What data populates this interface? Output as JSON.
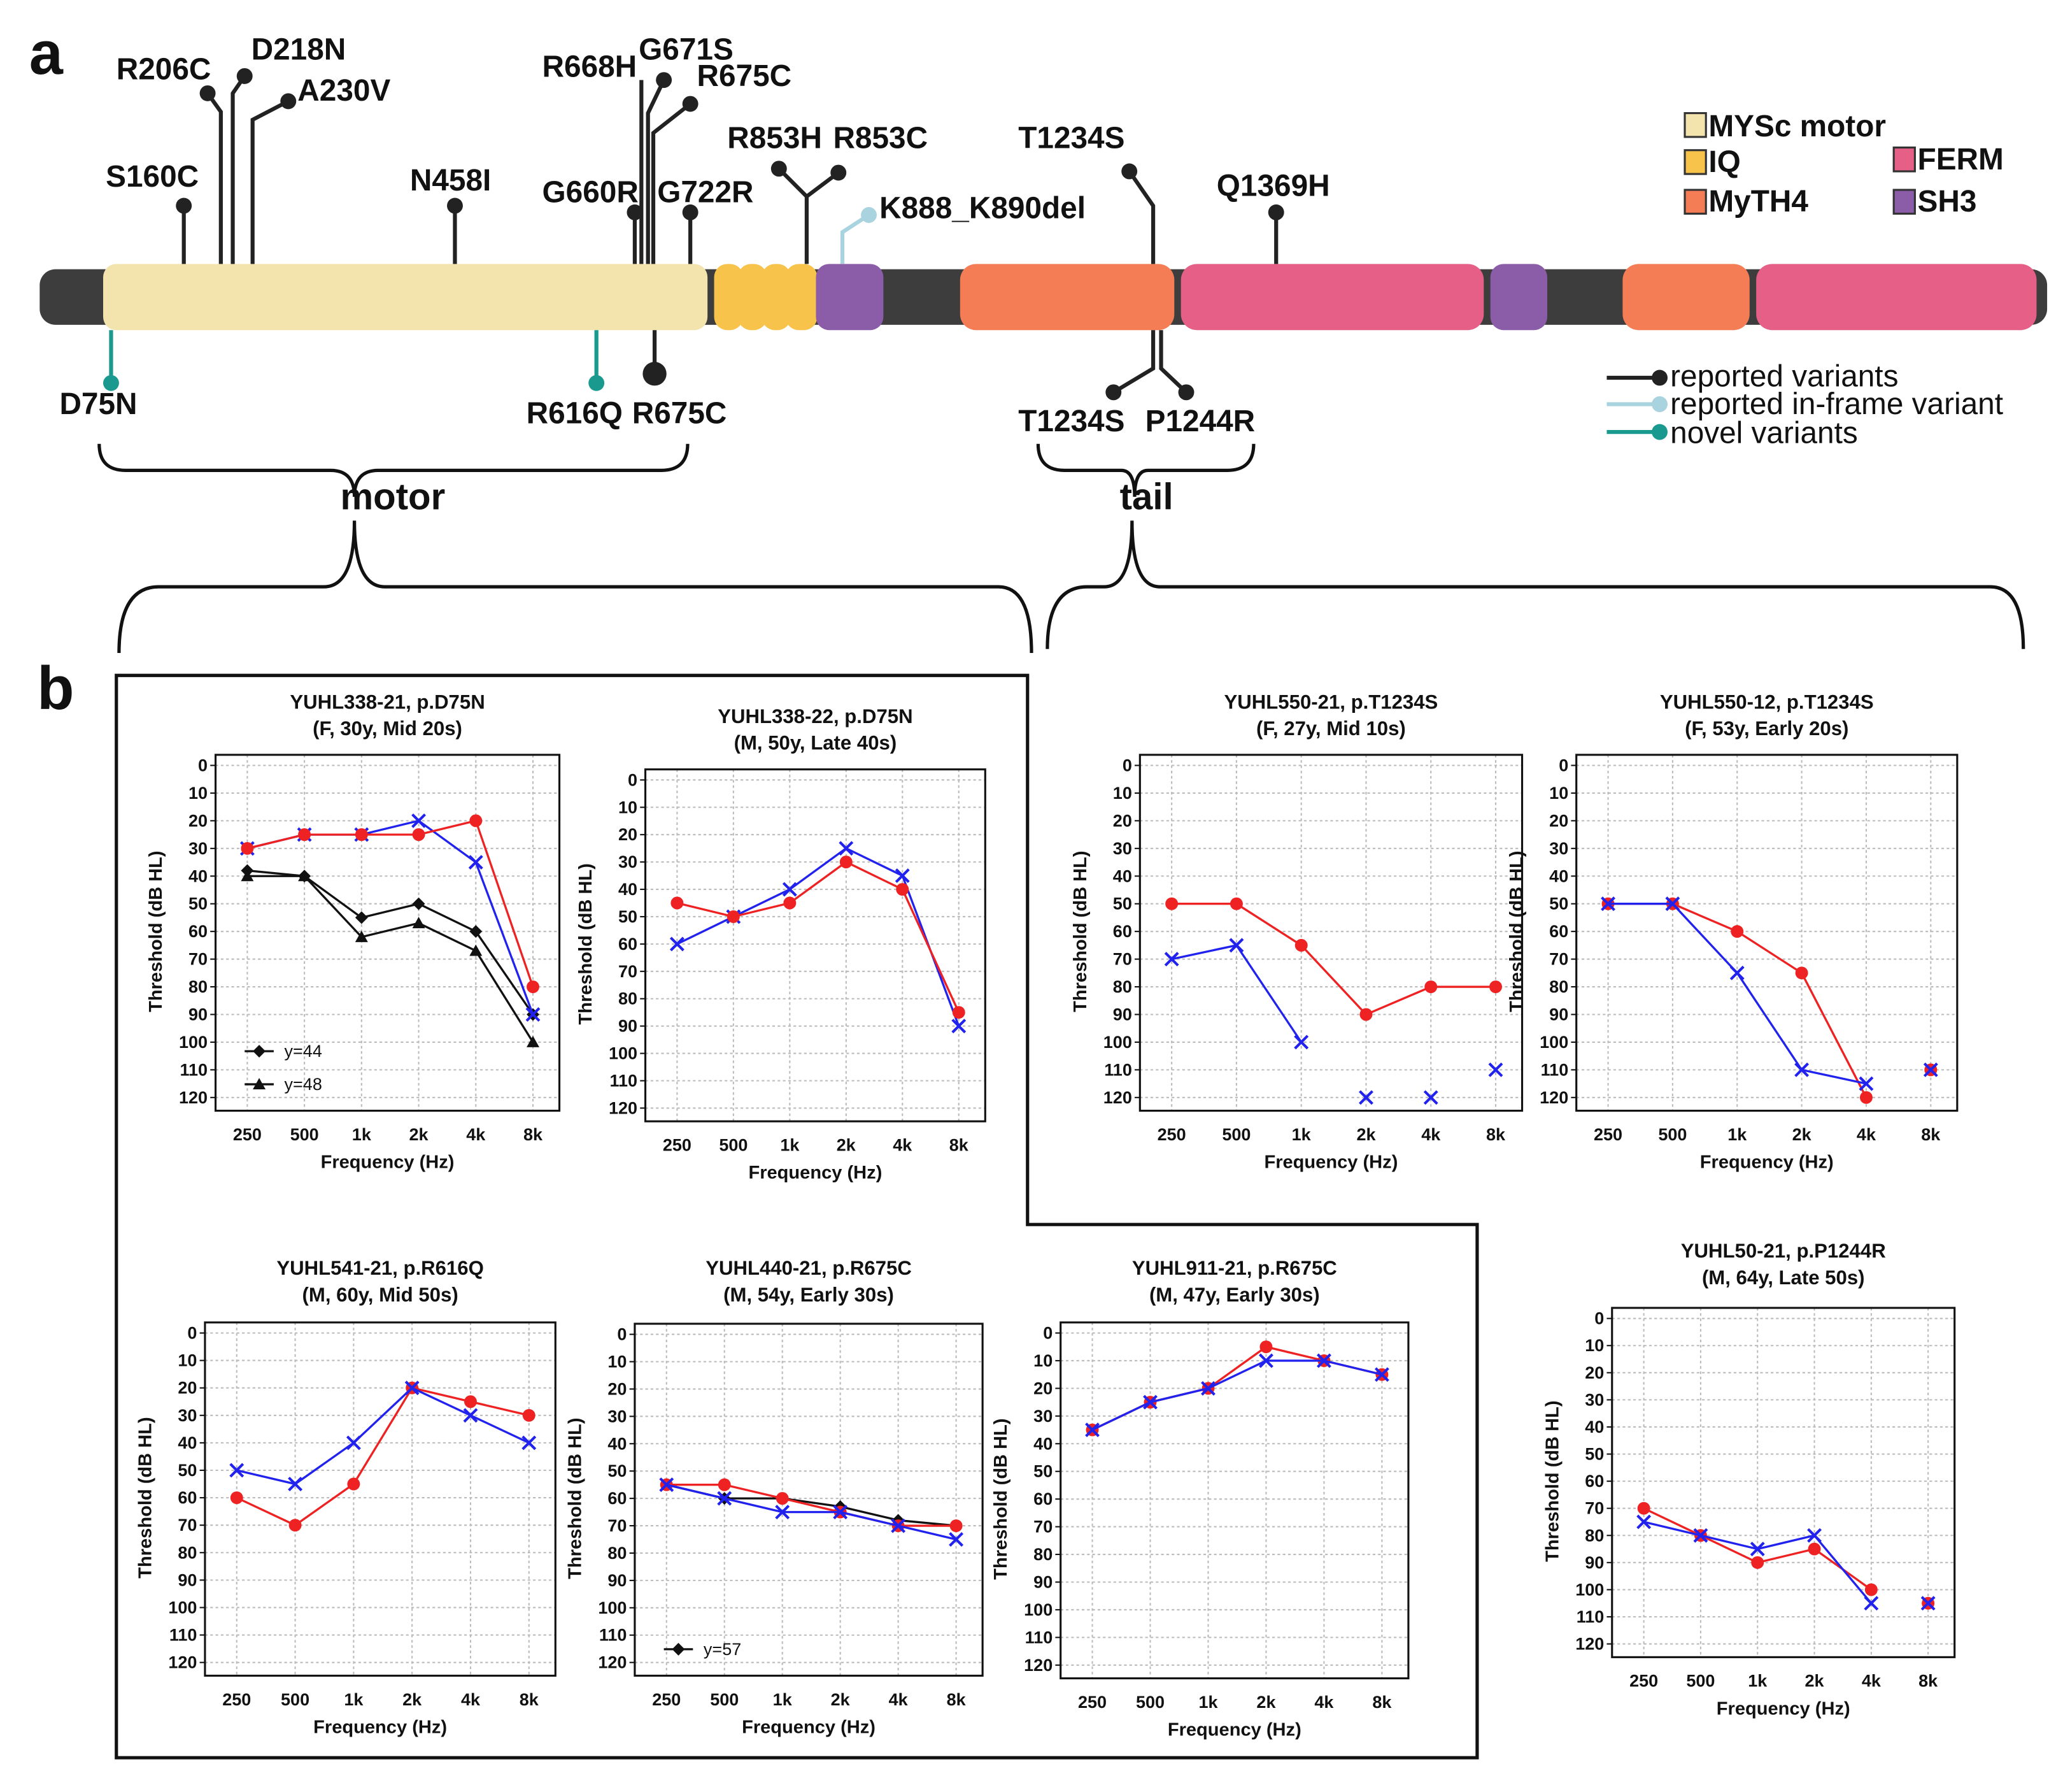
{
  "diagram": {
    "panel_labels": [
      "a",
      "b"
    ],
    "variants_above": [
      "S160C",
      "R206C",
      "D218N",
      "A230V",
      "N458I",
      "R668H",
      "G671S",
      "R675C",
      "G660R",
      "G722R",
      "R853H",
      "R853C",
      "K888_K890del",
      "T1234S",
      "Q1369H"
    ],
    "variants_below": [
      "D75N",
      "R616Q",
      "R675C",
      "T1234S",
      "P1244R"
    ],
    "domain_legend": [
      "MYSc motor",
      "IQ",
      "MyTH4",
      "FERM",
      "SH3"
    ],
    "line_legend": [
      "reported variants",
      "reported in-frame variant",
      "novel variants"
    ],
    "regions": [
      "motor",
      "tail"
    ]
  },
  "chart_data": [
    {
      "type": "line",
      "title": "YUHL338-21, p.D75N",
      "subtitle": "(F, 30y, Mid 20s)",
      "xlabel": "Frequency (Hz)",
      "ylabel": "Threshold (dB HL)",
      "categories": [
        "250",
        "500",
        "1k",
        "2k",
        "4k",
        "8k"
      ],
      "ylim": [
        0,
        120
      ],
      "yticks": [
        0,
        10,
        20,
        30,
        40,
        50,
        60,
        70,
        80,
        90,
        100,
        110,
        120
      ],
      "y_inverted": true,
      "grid": true,
      "series": [
        {
          "name": "y=44",
          "color": "#111111",
          "marker": "diamond",
          "values": [
            38,
            40,
            55,
            50,
            60,
            90
          ]
        },
        {
          "name": "y=48",
          "color": "#111111",
          "marker": "triangle",
          "values": [
            40,
            40,
            62,
            57,
            67,
            100
          ]
        },
        {
          "color": "#2222ee",
          "marker": "x",
          "values": [
            30,
            25,
            25,
            20,
            35,
            90
          ]
        },
        {
          "color": "#ee2222",
          "marker": "circle",
          "values": [
            30,
            25,
            25,
            25,
            20,
            80
          ]
        }
      ]
    },
    {
      "type": "line",
      "title": "YUHL338-22, p.D75N",
      "subtitle": "(M, 50y, Late 40s)",
      "xlabel": "Frequency (Hz)",
      "ylabel": "Threshold (dB HL)",
      "categories": [
        "250",
        "500",
        "1k",
        "2k",
        "4k",
        "8k"
      ],
      "ylim": [
        0,
        120
      ],
      "yticks": [
        0,
        10,
        20,
        30,
        40,
        50,
        60,
        70,
        80,
        90,
        100,
        110,
        120
      ],
      "y_inverted": true,
      "grid": true,
      "series": [
        {
          "color": "#2222ee",
          "marker": "x",
          "values": [
            60,
            50,
            40,
            25,
            35,
            90
          ]
        },
        {
          "color": "#ee2222",
          "marker": "circle",
          "values": [
            45,
            50,
            45,
            30,
            40,
            85
          ]
        }
      ]
    },
    {
      "type": "line",
      "title": "YUHL550-21, p.T1234S",
      "subtitle": "(F, 27y, Mid 10s)",
      "xlabel": "Frequency (Hz)",
      "ylabel": "Threshold (dB HL)",
      "categories": [
        "250",
        "500",
        "1k",
        "2k",
        "4k",
        "8k"
      ],
      "ylim": [
        0,
        120
      ],
      "yticks": [
        0,
        10,
        20,
        30,
        40,
        50,
        60,
        70,
        80,
        90,
        100,
        110,
        120
      ],
      "y_inverted": true,
      "grid": true,
      "series": [
        {
          "color": "#2222ee",
          "marker": "x",
          "values": [
            70,
            65,
            100,
            null,
            null,
            null
          ]
        },
        {
          "color": "#2222ee",
          "marker": "x",
          "line": false,
          "values": [
            null,
            null,
            null,
            120,
            120,
            110
          ]
        },
        {
          "color": "#ee2222",
          "marker": "circle",
          "values": [
            50,
            50,
            65,
            90,
            80,
            80
          ]
        }
      ]
    },
    {
      "type": "line",
      "title": "YUHL550-12, p.T1234S",
      "subtitle": "(F, 53y, Early 20s)",
      "xlabel": "Frequency (Hz)",
      "ylabel": "Threshold (dB HL)",
      "categories": [
        "250",
        "500",
        "1k",
        "2k",
        "4k",
        "8k"
      ],
      "ylim": [
        0,
        120
      ],
      "yticks": [
        0,
        10,
        20,
        30,
        40,
        50,
        60,
        70,
        80,
        90,
        100,
        110,
        120
      ],
      "y_inverted": true,
      "grid": true,
      "series": [
        {
          "color": "#ee2222",
          "marker": "circle",
          "values": [
            50,
            50,
            60,
            75,
            120,
            null
          ]
        },
        {
          "color": "#ee2222",
          "marker": "circle",
          "line": false,
          "values": [
            null,
            null,
            null,
            null,
            null,
            110
          ]
        },
        {
          "color": "#2222ee",
          "marker": "x",
          "values": [
            50,
            50,
            75,
            110,
            115,
            null
          ]
        },
        {
          "color": "#2222ee",
          "marker": "x",
          "line": false,
          "values": [
            null,
            null,
            null,
            null,
            null,
            110
          ]
        }
      ]
    },
    {
      "type": "line",
      "title": "YUHL541-21, p.R616Q",
      "subtitle": "(M, 60y, Mid 50s)",
      "xlabel": "Frequency (Hz)",
      "ylabel": "Threshold (dB HL)",
      "categories": [
        "250",
        "500",
        "1k",
        "2k",
        "4k",
        "8k"
      ],
      "ylim": [
        0,
        120
      ],
      "yticks": [
        0,
        10,
        20,
        30,
        40,
        50,
        60,
        70,
        80,
        90,
        100,
        110,
        120
      ],
      "y_inverted": true,
      "grid": true,
      "series": [
        {
          "color": "#ee2222",
          "marker": "circle",
          "values": [
            60,
            70,
            55,
            20,
            25,
            30
          ]
        },
        {
          "color": "#2222ee",
          "marker": "x",
          "values": [
            50,
            55,
            40,
            20,
            30,
            40
          ]
        }
      ]
    },
    {
      "type": "line",
      "title": "YUHL440-21, p.R675C",
      "subtitle": "(M, 54y, Early 30s)",
      "xlabel": "Frequency (Hz)",
      "ylabel": "Threshold (dB HL)",
      "categories": [
        "250",
        "500",
        "1k",
        "2k",
        "4k",
        "8k"
      ],
      "ylim": [
        0,
        120
      ],
      "yticks": [
        0,
        10,
        20,
        30,
        40,
        50,
        60,
        70,
        80,
        90,
        100,
        110,
        120
      ],
      "y_inverted": true,
      "grid": true,
      "series": [
        {
          "name": "y=57",
          "color": "#111111",
          "marker": "diamond",
          "values": [
            55,
            60,
            60,
            63,
            68,
            70
          ]
        },
        {
          "color": "#ee2222",
          "marker": "circle",
          "values": [
            55,
            55,
            60,
            65,
            70,
            70
          ]
        },
        {
          "color": "#2222ee",
          "marker": "x",
          "values": [
            55,
            60,
            65,
            65,
            70,
            75
          ]
        }
      ]
    },
    {
      "type": "line",
      "title": "YUHL911-21, p.R675C",
      "subtitle": "(M, 47y, Early 30s)",
      "xlabel": "Frequency (Hz)",
      "ylabel": "Threshold (dB HL)",
      "categories": [
        "250",
        "500",
        "1k",
        "2k",
        "4k",
        "8k"
      ],
      "ylim": [
        0,
        120
      ],
      "yticks": [
        0,
        10,
        20,
        30,
        40,
        50,
        60,
        70,
        80,
        90,
        100,
        110,
        120
      ],
      "y_inverted": true,
      "grid": true,
      "series": [
        {
          "color": "#ee2222",
          "marker": "circle",
          "values": [
            35,
            25,
            20,
            5,
            10,
            15
          ]
        },
        {
          "color": "#2222ee",
          "marker": "x",
          "values": [
            35,
            25,
            20,
            10,
            10,
            15
          ]
        }
      ]
    },
    {
      "type": "line",
      "title": "YUHL50-21, p.P1244R",
      "subtitle": "(M, 64y,  Late 50s)",
      "xlabel": "Frequency (Hz)",
      "ylabel": "Threshold (dB HL)",
      "categories": [
        "250",
        "500",
        "1k",
        "2k",
        "4k",
        "8k"
      ],
      "ylim": [
        0,
        120
      ],
      "yticks": [
        0,
        10,
        20,
        30,
        40,
        50,
        60,
        70,
        80,
        90,
        100,
        110,
        120
      ],
      "y_inverted": true,
      "grid": true,
      "series": [
        {
          "color": "#ee2222",
          "marker": "circle",
          "values": [
            70,
            80,
            90,
            85,
            100,
            null
          ]
        },
        {
          "color": "#ee2222",
          "marker": "circle",
          "line": false,
          "values": [
            null,
            null,
            null,
            null,
            null,
            105
          ]
        },
        {
          "color": "#2222ee",
          "marker": "x",
          "values": [
            75,
            80,
            85,
            80,
            105,
            null
          ]
        },
        {
          "color": "#2222ee",
          "marker": "x",
          "line": false,
          "values": [
            null,
            null,
            null,
            null,
            null,
            105
          ]
        }
      ]
    }
  ]
}
